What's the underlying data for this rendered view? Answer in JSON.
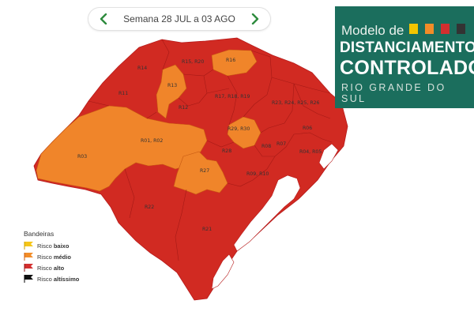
{
  "week_nav": {
    "label": "Semana 28 JUL a 03 AGO",
    "prev_icon": "chevron-left-icon",
    "next_icon": "chevron-right-icon",
    "accent_color": "#2e8b3e"
  },
  "title": {
    "line1": "Modelo de",
    "line2": "DISTANCIAMENTO",
    "line3": "CONTROLADO",
    "line4": "RIO GRANDE DO SUL",
    "background": "#1b6e5d",
    "swatches": [
      "#f2c500",
      "#f28c28",
      "#d32f2f",
      "#333333"
    ]
  },
  "legend": {
    "title": "Bandeiras",
    "items": [
      {
        "prefix": "Risco ",
        "level": "baixo",
        "color": "#f5c518"
      },
      {
        "prefix": "Risco ",
        "level": "médio",
        "color": "#f28c28"
      },
      {
        "prefix": "Risco ",
        "level": "alto",
        "color": "#d32f2f"
      },
      {
        "prefix": "Risco ",
        "level": "altíssimo",
        "color": "#111111"
      }
    ]
  },
  "map": {
    "colors": {
      "alto": "#d12a22",
      "medio": "#f0852a",
      "border": "#b71c1c",
      "water": "#ffffff"
    },
    "regions": [
      {
        "label": "R15, R20",
        "risk": "alto"
      },
      {
        "label": "R16",
        "risk": "médio"
      },
      {
        "label": "R14",
        "risk": "alto"
      },
      {
        "label": "R13",
        "risk": "médio"
      },
      {
        "label": "R11",
        "risk": "alto"
      },
      {
        "label": "R12",
        "risk": "alto"
      },
      {
        "label": "R17, R18, R19",
        "risk": "alto"
      },
      {
        "label": "R23, R24, R25, R26",
        "risk": "alto"
      },
      {
        "label": "R01, R02",
        "risk": "médio"
      },
      {
        "label": "R29, R30",
        "risk": "médio"
      },
      {
        "label": "R06",
        "risk": "alto"
      },
      {
        "label": "R03",
        "risk": "médio"
      },
      {
        "label": "R28",
        "risk": "alto"
      },
      {
        "label": "R08",
        "risk": "alto"
      },
      {
        "label": "R07",
        "risk": "alto"
      },
      {
        "label": "R04, R05",
        "risk": "alto"
      },
      {
        "label": "R27",
        "risk": "médio"
      },
      {
        "label": "R09, R10",
        "risk": "alto"
      },
      {
        "label": "R22",
        "risk": "alto"
      },
      {
        "label": "R21",
        "risk": "alto"
      }
    ]
  }
}
